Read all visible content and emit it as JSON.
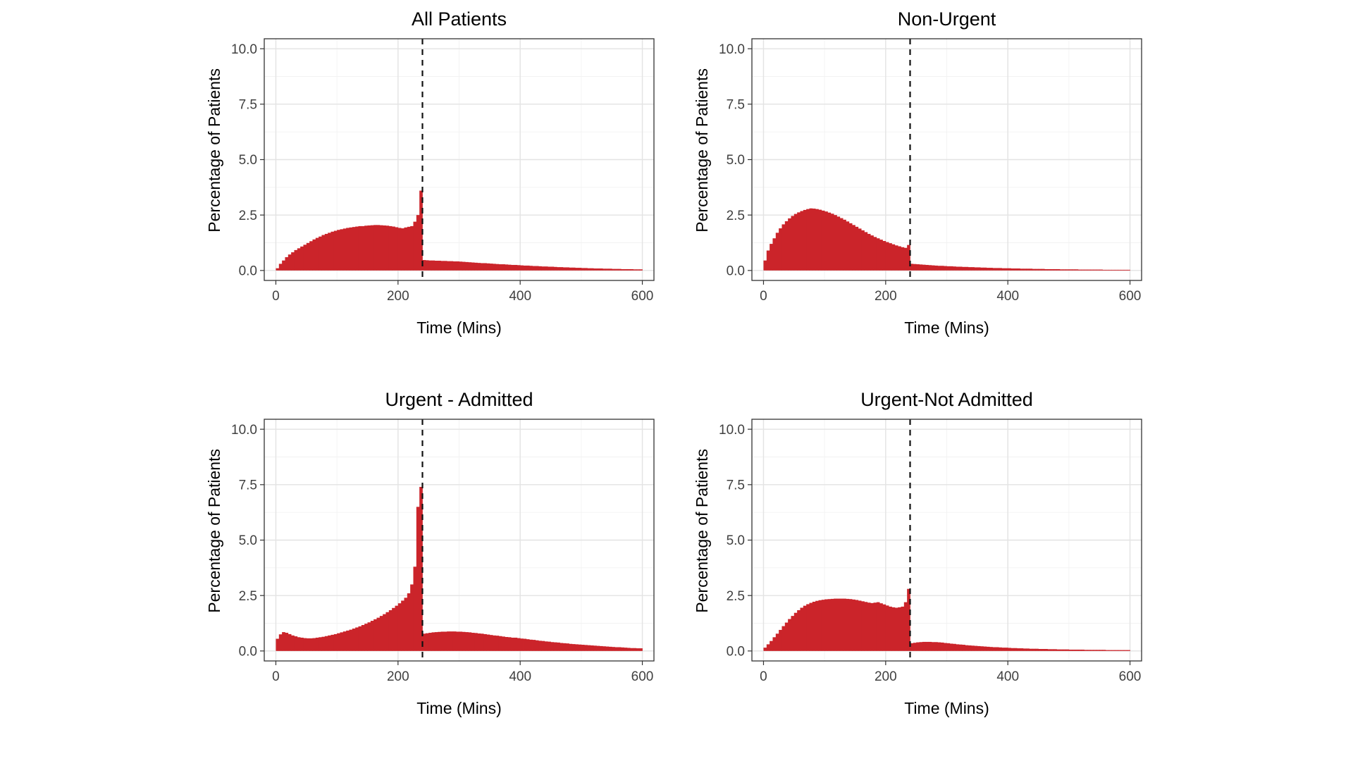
{
  "style": {
    "bar_color": "#CB242A",
    "vline_color": "#111111",
    "panel_border": "#333333",
    "grid_major": "#E3E3E3",
    "grid_minor": "#F2F2F2",
    "tick_color": "#333333",
    "tick_label_color": "#404040",
    "background": "#FFFFFF"
  },
  "chart_data": [
    {
      "type": "bar",
      "subtype": "histogram",
      "title": "All Patients",
      "xlabel": "Time (Mins)",
      "ylabel": "Percentage of Patients",
      "bin_start": 0,
      "bin_width": 5,
      "vline_x": 240,
      "vline_style": "dashed",
      "x_ticks": [
        0,
        200,
        400,
        600
      ],
      "x_minor": [
        100,
        300,
        500
      ],
      "y_ticks": [
        0,
        2.5,
        5,
        7.5,
        10
      ],
      "y_tick_labels": [
        "0.0",
        "2.5",
        "5.0",
        "7.5",
        "10.0"
      ],
      "y_minor": [
        1.25,
        3.75,
        6.25,
        8.75
      ],
      "xlim": [
        0,
        600
      ],
      "ylim": [
        0,
        10
      ],
      "grid": true,
      "values": [
        0.1,
        0.3,
        0.45,
        0.6,
        0.72,
        0.82,
        0.92,
        1.0,
        1.08,
        1.16,
        1.24,
        1.32,
        1.4,
        1.47,
        1.53,
        1.6,
        1.65,
        1.7,
        1.75,
        1.79,
        1.83,
        1.86,
        1.89,
        1.92,
        1.94,
        1.96,
        1.98,
        2.0,
        2.0,
        2.02,
        2.03,
        2.04,
        2.05,
        2.05,
        2.04,
        2.03,
        2.02,
        2.0,
        1.98,
        1.95,
        1.92,
        1.9,
        1.94,
        1.97,
        2.0,
        2.2,
        2.5,
        3.6,
        0.47,
        0.46,
        0.45,
        0.45,
        0.44,
        0.44,
        0.43,
        0.43,
        0.42,
        0.42,
        0.41,
        0.41,
        0.4,
        0.39,
        0.38,
        0.37,
        0.36,
        0.35,
        0.34,
        0.33,
        0.33,
        0.32,
        0.31,
        0.3,
        0.29,
        0.28,
        0.28,
        0.27,
        0.26,
        0.25,
        0.25,
        0.24,
        0.23,
        0.22,
        0.22,
        0.21,
        0.2,
        0.2,
        0.19,
        0.18,
        0.18,
        0.17,
        0.17,
        0.16,
        0.15,
        0.15,
        0.14,
        0.14,
        0.13,
        0.13,
        0.12,
        0.12,
        0.11,
        0.11,
        0.1,
        0.1,
        0.09,
        0.09,
        0.09,
        0.08,
        0.08,
        0.08,
        0.07,
        0.07,
        0.07,
        0.06,
        0.06,
        0.06,
        0.06,
        0.05,
        0.05,
        0.05
      ]
    },
    {
      "type": "bar",
      "subtype": "histogram",
      "title": "Non-Urgent",
      "xlabel": "Time (Mins)",
      "ylabel": "Percentage of Patients",
      "bin_start": 0,
      "bin_width": 5,
      "vline_x": 240,
      "vline_style": "dashed",
      "x_ticks": [
        0,
        200,
        400,
        600
      ],
      "x_minor": [
        100,
        300,
        500
      ],
      "y_ticks": [
        0,
        2.5,
        5,
        7.5,
        10
      ],
      "y_tick_labels": [
        "0.0",
        "2.5",
        "5.0",
        "7.5",
        "10.0"
      ],
      "y_minor": [
        1.25,
        3.75,
        6.25,
        8.75
      ],
      "xlim": [
        0,
        600
      ],
      "ylim": [
        0,
        10
      ],
      "grid": true,
      "values": [
        0.45,
        0.9,
        1.2,
        1.45,
        1.7,
        1.9,
        2.08,
        2.22,
        2.35,
        2.46,
        2.55,
        2.62,
        2.68,
        2.73,
        2.77,
        2.8,
        2.79,
        2.77,
        2.74,
        2.7,
        2.66,
        2.61,
        2.56,
        2.5,
        2.43,
        2.36,
        2.29,
        2.21,
        2.13,
        2.05,
        1.97,
        1.89,
        1.81,
        1.73,
        1.65,
        1.58,
        1.51,
        1.45,
        1.39,
        1.33,
        1.28,
        1.23,
        1.18,
        1.13,
        1.09,
        1.05,
        1.02,
        1.15,
        0.3,
        0.29,
        0.28,
        0.27,
        0.26,
        0.25,
        0.24,
        0.23,
        0.22,
        0.21,
        0.21,
        0.2,
        0.19,
        0.19,
        0.18,
        0.17,
        0.17,
        0.16,
        0.16,
        0.15,
        0.15,
        0.14,
        0.14,
        0.13,
        0.13,
        0.12,
        0.12,
        0.11,
        0.11,
        0.11,
        0.1,
        0.1,
        0.1,
        0.09,
        0.09,
        0.09,
        0.08,
        0.08,
        0.08,
        0.08,
        0.07,
        0.07,
        0.07,
        0.07,
        0.06,
        0.06,
        0.06,
        0.06,
        0.06,
        0.05,
        0.05,
        0.05,
        0.05,
        0.05,
        0.05,
        0.04,
        0.04,
        0.04,
        0.04,
        0.04,
        0.04,
        0.04,
        0.04,
        0.03,
        0.03,
        0.03,
        0.03,
        0.03,
        0.03,
        0.03,
        0.03,
        0.03
      ]
    },
    {
      "type": "bar",
      "subtype": "histogram",
      "title": "Urgent - Admitted",
      "xlabel": "Time (Mins)",
      "ylabel": "Percentage of Patients",
      "bin_start": 0,
      "bin_width": 5,
      "vline_x": 240,
      "vline_style": "dashed",
      "x_ticks": [
        0,
        200,
        400,
        600
      ],
      "x_minor": [
        100,
        300,
        500
      ],
      "y_ticks": [
        0,
        2.5,
        5,
        7.5,
        10
      ],
      "y_tick_labels": [
        "0.0",
        "2.5",
        "5.0",
        "7.5",
        "10.0"
      ],
      "y_minor": [
        1.25,
        3.75,
        6.25,
        8.75
      ],
      "xlim": [
        0,
        600
      ],
      "ylim": [
        0,
        10
      ],
      "grid": true,
      "values": [
        0.55,
        0.75,
        0.85,
        0.82,
        0.76,
        0.7,
        0.66,
        0.62,
        0.6,
        0.58,
        0.57,
        0.57,
        0.58,
        0.6,
        0.62,
        0.64,
        0.67,
        0.7,
        0.73,
        0.76,
        0.8,
        0.84,
        0.88,
        0.92,
        0.96,
        1.01,
        1.06,
        1.11,
        1.17,
        1.23,
        1.29,
        1.36,
        1.43,
        1.5,
        1.58,
        1.66,
        1.75,
        1.84,
        1.94,
        2.04,
        2.15,
        2.27,
        2.4,
        2.6,
        3.0,
        3.8,
        6.5,
        7.4,
        0.78,
        0.8,
        0.82,
        0.84,
        0.85,
        0.86,
        0.87,
        0.87,
        0.88,
        0.88,
        0.88,
        0.87,
        0.87,
        0.86,
        0.85,
        0.84,
        0.82,
        0.81,
        0.79,
        0.78,
        0.76,
        0.74,
        0.72,
        0.7,
        0.69,
        0.67,
        0.65,
        0.63,
        0.62,
        0.6,
        0.6,
        0.58,
        0.56,
        0.55,
        0.53,
        0.51,
        0.5,
        0.48,
        0.46,
        0.45,
        0.43,
        0.42,
        0.4,
        0.39,
        0.38,
        0.36,
        0.35,
        0.34,
        0.32,
        0.31,
        0.3,
        0.29,
        0.28,
        0.27,
        0.26,
        0.25,
        0.24,
        0.23,
        0.22,
        0.21,
        0.2,
        0.19,
        0.18,
        0.17,
        0.17,
        0.16,
        0.15,
        0.14,
        0.13,
        0.13,
        0.12,
        0.12
      ]
    },
    {
      "type": "bar",
      "subtype": "histogram",
      "title": "Urgent-Not Admitted",
      "xlabel": "Time (Mins)",
      "ylabel": "Percentage of Patients",
      "bin_start": 0,
      "bin_width": 5,
      "vline_x": 240,
      "vline_style": "dashed",
      "x_ticks": [
        0,
        200,
        400,
        600
      ],
      "x_minor": [
        100,
        300,
        500
      ],
      "y_ticks": [
        0,
        2.5,
        5,
        7.5,
        10
      ],
      "y_tick_labels": [
        "0.0",
        "2.5",
        "5.0",
        "7.5",
        "10.0"
      ],
      "y_minor": [
        1.25,
        3.75,
        6.25,
        8.75
      ],
      "xlim": [
        0,
        600
      ],
      "ylim": [
        0,
        10
      ],
      "grid": true,
      "values": [
        0.15,
        0.3,
        0.45,
        0.62,
        0.78,
        0.95,
        1.12,
        1.28,
        1.44,
        1.58,
        1.72,
        1.84,
        1.95,
        2.04,
        2.11,
        2.17,
        2.22,
        2.26,
        2.29,
        2.31,
        2.33,
        2.34,
        2.35,
        2.36,
        2.36,
        2.36,
        2.36,
        2.35,
        2.34,
        2.32,
        2.3,
        2.27,
        2.24,
        2.21,
        2.18,
        2.16,
        2.18,
        2.2,
        2.15,
        2.1,
        2.05,
        2.0,
        1.97,
        1.95,
        1.97,
        2.0,
        2.2,
        2.8,
        0.35,
        0.37,
        0.39,
        0.4,
        0.41,
        0.41,
        0.41,
        0.4,
        0.4,
        0.39,
        0.38,
        0.36,
        0.35,
        0.33,
        0.32,
        0.3,
        0.29,
        0.28,
        0.26,
        0.25,
        0.24,
        0.23,
        0.22,
        0.21,
        0.2,
        0.19,
        0.18,
        0.17,
        0.17,
        0.16,
        0.15,
        0.15,
        0.14,
        0.13,
        0.13,
        0.12,
        0.12,
        0.11,
        0.11,
        0.1,
        0.1,
        0.1,
        0.09,
        0.09,
        0.09,
        0.08,
        0.08,
        0.08,
        0.07,
        0.07,
        0.07,
        0.07,
        0.06,
        0.06,
        0.06,
        0.06,
        0.06,
        0.05,
        0.05,
        0.05,
        0.05,
        0.05,
        0.05,
        0.05,
        0.04,
        0.04,
        0.04,
        0.04,
        0.04,
        0.04,
        0.04,
        0.04
      ]
    }
  ]
}
